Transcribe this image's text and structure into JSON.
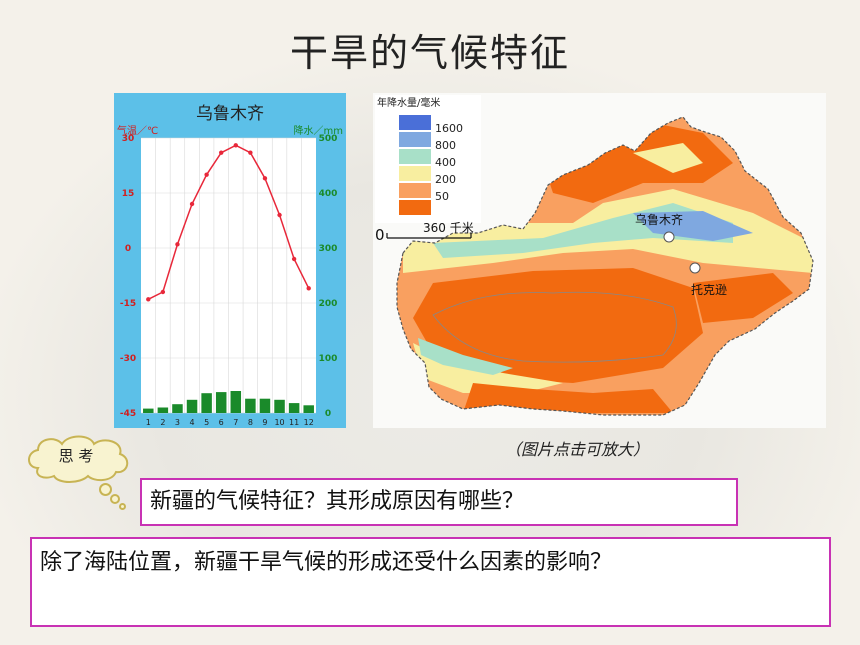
{
  "slide": {
    "title": "干旱的气候特征",
    "caption": "（图片点击可放大）",
    "think_label": "思 考",
    "question1": "新疆的气候特征？其形成原因有哪些？",
    "question2": "除了海陆位置，新疆干旱气候的形成还受什么因素的影响？"
  },
  "climate_chart": {
    "title": "乌鲁木齐",
    "left_axis_label": "气温／℃",
    "right_axis_label": "降水／mm",
    "temp_ticks": [
      "30",
      "15",
      "0",
      "-15",
      "-30",
      "-45"
    ],
    "precip_ticks": [
      "500",
      "400",
      "300",
      "200",
      "100",
      "0"
    ],
    "months": [
      "1",
      "2",
      "3",
      "4",
      "5",
      "6",
      "7",
      "8",
      "9",
      "10",
      "11",
      "12"
    ],
    "colors": {
      "temp_line": "#e8283a",
      "precip_bar": "#1a8a2a",
      "background": "#5cc0e8",
      "left_axis": "#d02020",
      "right_axis": "#1a8a2a"
    }
  },
  "chart_data": {
    "type": "bar",
    "title": "乌鲁木齐",
    "categories": [
      "1",
      "2",
      "3",
      "4",
      "5",
      "6",
      "7",
      "8",
      "9",
      "10",
      "11",
      "12"
    ],
    "series": [
      {
        "type": "line",
        "axis": "left",
        "values": [
          -14,
          -12,
          1,
          12,
          20,
          26,
          28,
          26,
          19,
          9,
          -3,
          -11
        ]
      },
      {
        "type": "bar",
        "axis": "right",
        "values": [
          8,
          10,
          16,
          24,
          36,
          38,
          40,
          26,
          26,
          24,
          18,
          14
        ]
      }
    ],
    "y_left_label": "气温／℃",
    "y_left_range": [
      -45,
      30
    ],
    "y_right_label": "降水／mm",
    "y_right_range": [
      0,
      500
    ]
  },
  "map": {
    "legend_title": "年降水量/毫米",
    "legend_items": [
      {
        "label": "1600",
        "color": "#4a6fd8"
      },
      {
        "label": "800",
        "color": "#7fa8e0"
      },
      {
        "label": "400",
        "color": "#a8e0c8"
      },
      {
        "label": "200",
        "color": "#f8eea0"
      },
      {
        "label": "50",
        "color": "#f9a060"
      },
      {
        "label": "",
        "color": "#f26a10"
      }
    ],
    "scale_zero": "0",
    "scale_label": "360 千米",
    "cities": [
      {
        "name": "乌鲁木齐"
      },
      {
        "name": "托克逊"
      }
    ]
  }
}
